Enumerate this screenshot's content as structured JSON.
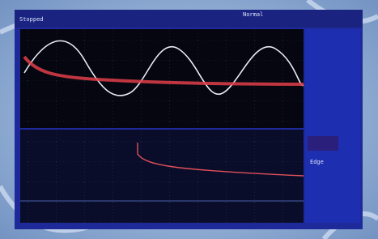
{
  "status": {
    "left": "Stopped",
    "right": "Normal"
  },
  "side_panel": {
    "trigger": "Edge"
  }
}
